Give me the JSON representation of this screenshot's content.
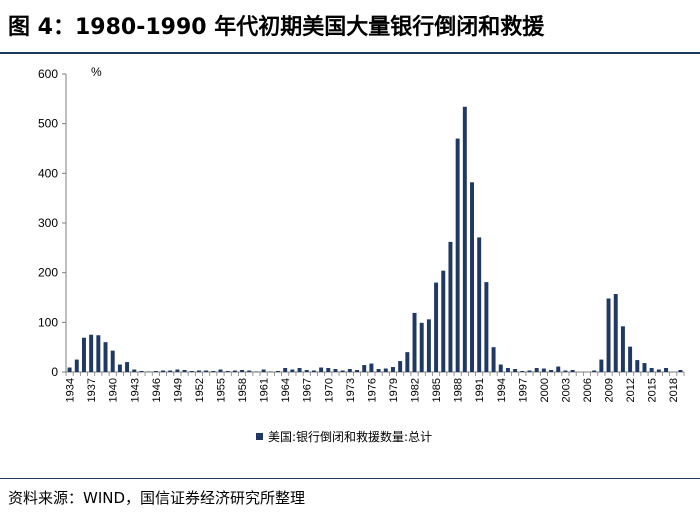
{
  "title": "图 4：1980-1990 年代初期美国大量银行倒闭和救援",
  "source": "资料来源：WIND，国信证券经济研究所整理",
  "chart_data": {
    "type": "bar",
    "unit": "%",
    "color": "#1f3864",
    "ylim": [
      0,
      600
    ],
    "yticks": [
      0,
      100,
      200,
      300,
      400,
      500,
      600
    ],
    "xtick_labels": [
      "1934",
      "1937",
      "1940",
      "1943",
      "1946",
      "1949",
      "1952",
      "1955",
      "1958",
      "1961",
      "1964",
      "1967",
      "1970",
      "1973",
      "1976",
      "1979",
      "1982",
      "1985",
      "1988",
      "1991",
      "1994",
      "1997",
      "2000",
      "2003",
      "2006",
      "2009",
      "2012",
      "2015",
      "2018"
    ],
    "legend_position": "bottom",
    "series": [
      {
        "name": "美国:银行倒闭和救援数量:总计",
        "x": [
          1934,
          1935,
          1936,
          1937,
          1938,
          1939,
          1940,
          1941,
          1942,
          1943,
          1944,
          1945,
          1946,
          1947,
          1948,
          1949,
          1950,
          1951,
          1952,
          1953,
          1954,
          1955,
          1956,
          1957,
          1958,
          1959,
          1960,
          1961,
          1962,
          1963,
          1964,
          1965,
          1966,
          1967,
          1968,
          1969,
          1970,
          1971,
          1972,
          1973,
          1974,
          1975,
          1976,
          1977,
          1978,
          1979,
          1980,
          1981,
          1982,
          1983,
          1984,
          1985,
          1986,
          1987,
          1988,
          1989,
          1990,
          1991,
          1992,
          1993,
          1994,
          1995,
          1996,
          1997,
          1998,
          1999,
          2000,
          2001,
          2002,
          2003,
          2004,
          2005,
          2006,
          2007,
          2008,
          2009,
          2010,
          2011,
          2012,
          2013,
          2014,
          2015,
          2016,
          2017,
          2018,
          2019
        ],
        "values": [
          9,
          25,
          69,
          75,
          74,
          60,
          43,
          15,
          20,
          5,
          2,
          1,
          2,
          3,
          3,
          5,
          4,
          2,
          3,
          3,
          2,
          5,
          2,
          3,
          4,
          3,
          1,
          5,
          1,
          2,
          8,
          5,
          8,
          4,
          3,
          9,
          8,
          6,
          3,
          6,
          4,
          14,
          17,
          6,
          7,
          10,
          22,
          40,
          119,
          99,
          106,
          180,
          204,
          262,
          470,
          534,
          382,
          271,
          181,
          50,
          15,
          8,
          6,
          2,
          3,
          8,
          7,
          4,
          11,
          3,
          4,
          0,
          0,
          3,
          25,
          148,
          157,
          92,
          51,
          24,
          18,
          8,
          5,
          8,
          0,
          4
        ]
      }
    ]
  }
}
